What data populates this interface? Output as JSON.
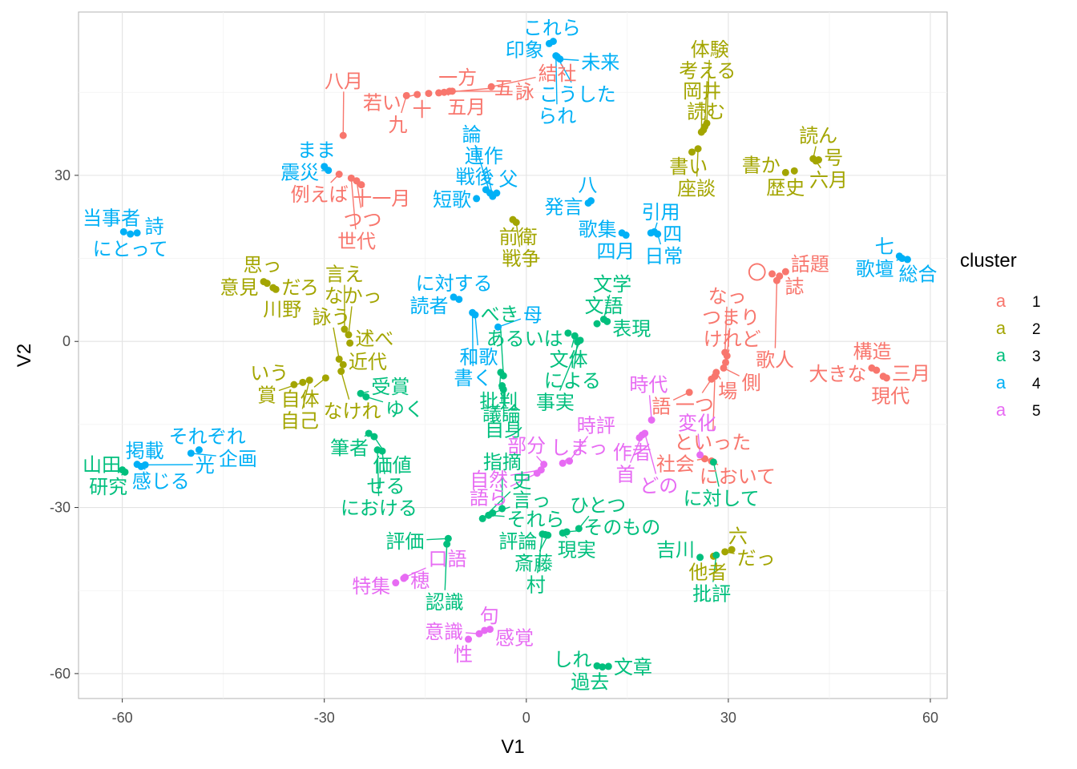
{
  "chart_data": {
    "type": "scatter",
    "xlabel": "V1",
    "ylabel": "V2",
    "xlim": [
      -66.5,
      62.5
    ],
    "ylim": [
      -64.5,
      59.5
    ],
    "x_ticks": [
      -60,
      -30,
      0,
      30,
      60
    ],
    "y_ticks": [
      -60,
      -30,
      0,
      30
    ],
    "grid": true,
    "legend": {
      "title": "cluster",
      "position": "right",
      "key_glyph": "a",
      "entries": [
        {
          "label": "1",
          "color": "#F8766D"
        },
        {
          "label": "2",
          "color": "#A3A500"
        },
        {
          "label": "3",
          "color": "#00BF7D"
        },
        {
          "label": "4",
          "color": "#00B0F6"
        },
        {
          "label": "5",
          "color": "#E76BF3"
        }
      ]
    },
    "points": [
      {
        "label": "九",
        "x": -17.8,
        "y": 44.4,
        "cluster": 1
      },
      {
        "label": "一方",
        "x": -11.4,
        "y": 45.2,
        "cluster": 1
      },
      {
        "label": "若い",
        "x": -16.2,
        "y": 44.6,
        "cluster": 1
      },
      {
        "label": "十",
        "x": -14.5,
        "y": 44.8,
        "cluster": 1
      },
      {
        "label": "五",
        "x": -13.0,
        "y": 44.9,
        "cluster": 1
      },
      {
        "label": "五月",
        "x": -12.2,
        "y": 45.0,
        "cluster": 1
      },
      {
        "label": "詠",
        "x": -11.0,
        "y": 45.2,
        "cluster": 1
      },
      {
        "label": "結社",
        "x": -5.2,
        "y": 46.0,
        "cluster": 1
      },
      {
        "label": "八月",
        "x": -27.2,
        "y": 37.2,
        "cluster": 1
      },
      {
        "label": "例えば",
        "x": -27.8,
        "y": 30.2,
        "cluster": 1
      },
      {
        "label": "世代",
        "x": -26.0,
        "y": 29.5,
        "cluster": 1
      },
      {
        "label": "つつ",
        "x": -25.2,
        "y": 29.0,
        "cluster": 1
      },
      {
        "label": "十一月",
        "x": -24.5,
        "y": 28.3,
        "cluster": 1
      },
      {
        "label": "〇",
        "x": 36.5,
        "y": 12.2,
        "cluster": 1
      },
      {
        "label": "話題",
        "x": 38.5,
        "y": 12.6,
        "cluster": 1
      },
      {
        "label": "誌",
        "x": 37.6,
        "y": 11.8,
        "cluster": 1
      },
      {
        "label": "歌人",
        "x": 37.2,
        "y": 11.0,
        "cluster": 1
      },
      {
        "label": "なっ",
        "x": 29.5,
        "y": -2.0,
        "cluster": 1
      },
      {
        "label": "つまり",
        "x": 29.8,
        "y": -2.6,
        "cluster": 1
      },
      {
        "label": "けれど",
        "x": 29.6,
        "y": -3.8,
        "cluster": 1
      },
      {
        "label": "側",
        "x": 29.3,
        "y": -4.8,
        "cluster": 1
      },
      {
        "label": "場",
        "x": 28.2,
        "y": -5.6,
        "cluster": 1
      },
      {
        "label": "一つ",
        "x": 27.5,
        "y": -6.8,
        "cluster": 1
      },
      {
        "label": "といった",
        "x": 28.0,
        "y": -6.3,
        "cluster": 1
      },
      {
        "label": "語",
        "x": 24.2,
        "y": -9.2,
        "cluster": 1
      },
      {
        "label": "大きな",
        "x": 51.3,
        "y": -4.8,
        "cluster": 1
      },
      {
        "label": "構造",
        "x": 52.0,
        "y": -5.2,
        "cluster": 1
      },
      {
        "label": "三月",
        "x": 53.5,
        "y": -6.6,
        "cluster": 1
      },
      {
        "label": "現代",
        "x": 53.0,
        "y": -6.3,
        "cluster": 1
      },
      {
        "label": "社会",
        "x": 26.5,
        "y": -21.2,
        "cluster": 1
      },
      {
        "label": "において",
        "x": 27.5,
        "y": -21.6,
        "cluster": 1
      },
      {
        "label": "体験",
        "x": 26.8,
        "y": 39.4,
        "cluster": 2
      },
      {
        "label": "考える",
        "x": 26.5,
        "y": 38.8,
        "cluster": 2
      },
      {
        "label": "読む",
        "x": 26.3,
        "y": 38.2,
        "cluster": 2
      },
      {
        "label": "岡井",
        "x": 26.0,
        "y": 37.8,
        "cluster": 2
      },
      {
        "label": "書い",
        "x": 24.6,
        "y": 34.2,
        "cluster": 2
      },
      {
        "label": "座談",
        "x": 25.5,
        "y": 34.8,
        "cluster": 2
      },
      {
        "label": "読ん",
        "x": 42.6,
        "y": 33.0,
        "cluster": 2
      },
      {
        "label": "六月",
        "x": 43.0,
        "y": 32.6,
        "cluster": 2
      },
      {
        "label": "号",
        "x": 43.4,
        "y": 32.8,
        "cluster": 2
      },
      {
        "label": "書か",
        "x": 38.5,
        "y": 30.5,
        "cluster": 2
      },
      {
        "label": "歴史",
        "x": 39.8,
        "y": 30.8,
        "cluster": 2
      },
      {
        "label": "前衛",
        "x": -2.0,
        "y": 22.0,
        "cluster": 2
      },
      {
        "label": "戦争",
        "x": -1.5,
        "y": 21.5,
        "cluster": 2
      },
      {
        "label": "意見",
        "x": -39.0,
        "y": 10.8,
        "cluster": 2
      },
      {
        "label": "思っ",
        "x": -38.5,
        "y": 10.5,
        "cluster": 2
      },
      {
        "label": "だろ",
        "x": -37.6,
        "y": 9.7,
        "cluster": 2
      },
      {
        "label": "川野",
        "x": -37.2,
        "y": 9.4,
        "cluster": 2
      },
      {
        "label": "言え",
        "x": -27.0,
        "y": 2.2,
        "cluster": 2
      },
      {
        "label": "なかっ",
        "x": -26.4,
        "y": 1.2,
        "cluster": 2
      },
      {
        "label": "述べ",
        "x": -26.2,
        "y": -0.3,
        "cluster": 2
      },
      {
        "label": "詠う",
        "x": -27.8,
        "y": -3.2,
        "cluster": 2
      },
      {
        "label": "近代",
        "x": -27.2,
        "y": -4.2,
        "cluster": 2
      },
      {
        "label": "自体",
        "x": -29.8,
        "y": -6.6,
        "cluster": 2
      },
      {
        "label": "なけれ",
        "x": -27.5,
        "y": -5.4,
        "cluster": 2
      },
      {
        "label": "いう",
        "x": -34.5,
        "y": -7.8,
        "cluster": 2
      },
      {
        "label": "賞",
        "x": -33.2,
        "y": -7.4,
        "cluster": 2
      },
      {
        "label": "自己",
        "x": -32.2,
        "y": -7.0,
        "cluster": 2
      },
      {
        "label": "他者",
        "x": 27.8,
        "y": -38.8,
        "cluster": 2
      },
      {
        "label": "だっ",
        "x": 29.5,
        "y": -38.0,
        "cluster": 2
      },
      {
        "label": "六",
        "x": 30.5,
        "y": -37.6,
        "cluster": 2
      },
      {
        "label": "文体",
        "x": 7.2,
        "y": 1.0,
        "cluster": 3
      },
      {
        "label": "あるいは",
        "x": 6.2,
        "y": 1.5,
        "cluster": 3
      },
      {
        "label": "文語",
        "x": 10.5,
        "y": 3.2,
        "cluster": 3
      },
      {
        "label": "文学",
        "x": 11.5,
        "y": 4.0,
        "cluster": 3
      },
      {
        "label": "表現",
        "x": 12.0,
        "y": 3.6,
        "cluster": 3
      },
      {
        "label": "事実",
        "x": 8.0,
        "y": 0.2,
        "cluster": 3
      },
      {
        "label": "による",
        "x": 7.6,
        "y": -0.1,
        "cluster": 3
      },
      {
        "label": "批判",
        "x": -3.8,
        "y": -5.6,
        "cluster": 3
      },
      {
        "label": "べき",
        "x": -3.4,
        "y": -6.2,
        "cluster": 3
      },
      {
        "label": "議論",
        "x": -3.6,
        "y": -8.0,
        "cluster": 3
      },
      {
        "label": "自身",
        "x": -3.4,
        "y": -8.7,
        "cluster": 3
      },
      {
        "label": "受賞",
        "x": -24.6,
        "y": -9.4,
        "cluster": 3
      },
      {
        "label": "ゆく",
        "x": -23.8,
        "y": -10.0,
        "cluster": 3
      },
      {
        "label": "筆者",
        "x": -23.4,
        "y": -16.6,
        "cluster": 3
      },
      {
        "label": "価値",
        "x": -22.6,
        "y": -17.2,
        "cluster": 3
      },
      {
        "label": "における",
        "x": -22.1,
        "y": -19.6,
        "cluster": 3
      },
      {
        "label": "せる",
        "x": -21.4,
        "y": -19.8,
        "cluster": 3
      },
      {
        "label": "山田",
        "x": -60.0,
        "y": -23.2,
        "cluster": 3
      },
      {
        "label": "研究",
        "x": -59.6,
        "y": -23.6,
        "cluster": 3
      },
      {
        "label": "に対して",
        "x": 27.8,
        "y": -21.8,
        "cluster": 3
      },
      {
        "label": "指摘",
        "x": -3.6,
        "y": -30.2,
        "cluster": 3
      },
      {
        "label": "史",
        "x": -6.5,
        "y": -32.0,
        "cluster": 3
      },
      {
        "label": "それら",
        "x": -5.6,
        "y": -31.4,
        "cluster": 3
      },
      {
        "label": "言っ",
        "x": -5.0,
        "y": -31.0,
        "cluster": 3
      },
      {
        "label": "評価",
        "x": -11.6,
        "y": -35.6,
        "cluster": 3
      },
      {
        "label": "認識",
        "x": -11.8,
        "y": -36.6,
        "cluster": 3
      },
      {
        "label": "村",
        "x": 2.4,
        "y": -34.8,
        "cluster": 3
      },
      {
        "label": "斎藤",
        "x": 3.2,
        "y": -35.0,
        "cluster": 3
      },
      {
        "label": "評論",
        "x": 2.8,
        "y": -34.9,
        "cluster": 3
      },
      {
        "label": "ひとつ",
        "x": 7.8,
        "y": -33.8,
        "cluster": 3
      },
      {
        "label": "現実",
        "x": 5.4,
        "y": -34.6,
        "cluster": 3
      },
      {
        "label": "そのもの",
        "x": 6.0,
        "y": -34.4,
        "cluster": 3
      },
      {
        "label": "批評",
        "x": 28.2,
        "y": -38.6,
        "cluster": 3
      },
      {
        "label": "吉川",
        "x": 25.8,
        "y": -39.0,
        "cluster": 3
      },
      {
        "label": "しれ",
        "x": 10.5,
        "y": -58.6,
        "cluster": 3
      },
      {
        "label": "過去",
        "x": 11.3,
        "y": -58.8,
        "cluster": 3
      },
      {
        "label": "文章",
        "x": 12.2,
        "y": -58.7,
        "cluster": 3
      },
      {
        "label": "印象",
        "x": 3.4,
        "y": 53.8,
        "cluster": 4
      },
      {
        "label": "これら",
        "x": 4.0,
        "y": 54.2,
        "cluster": 4
      },
      {
        "label": "られ",
        "x": 4.4,
        "y": 51.6,
        "cluster": 4
      },
      {
        "label": "未来",
        "x": 5.0,
        "y": 51.0,
        "cluster": 4
      },
      {
        "label": "こうした",
        "x": 4.6,
        "y": 51.4,
        "cluster": 4
      },
      {
        "label": "まま",
        "x": -30.0,
        "y": 31.6,
        "cluster": 4
      },
      {
        "label": "震災",
        "x": -29.4,
        "y": 30.9,
        "cluster": 4
      },
      {
        "label": "詩",
        "x": -57.8,
        "y": 19.6,
        "cluster": 4
      },
      {
        "label": "当事者",
        "x": -59.8,
        "y": 19.8,
        "cluster": 4
      },
      {
        "label": "にとって",
        "x": -58.8,
        "y": 19.4,
        "cluster": 4
      },
      {
        "label": "戦後",
        "x": -6.0,
        "y": 27.4,
        "cluster": 4
      },
      {
        "label": "論",
        "x": -5.4,
        "y": 26.8,
        "cluster": 4
      },
      {
        "label": "連作",
        "x": -5.0,
        "y": 26.2,
        "cluster": 4
      },
      {
        "label": "父",
        "x": -4.4,
        "y": 26.8,
        "cluster": 4
      },
      {
        "label": "短歌",
        "x": -7.4,
        "y": 25.8,
        "cluster": 4
      },
      {
        "label": "八",
        "x": 9.6,
        "y": 25.4,
        "cluster": 4
      },
      {
        "label": "発言",
        "x": 9.2,
        "y": 25.0,
        "cluster": 4
      },
      {
        "label": "四月",
        "x": 14.2,
        "y": 19.6,
        "cluster": 4
      },
      {
        "label": "歌集",
        "x": 14.8,
        "y": 19.2,
        "cluster": 4
      },
      {
        "label": "四",
        "x": 18.5,
        "y": 19.6,
        "cluster": 4
      },
      {
        "label": "引用",
        "x": 19.0,
        "y": 19.8,
        "cluster": 4
      },
      {
        "label": "日常",
        "x": 19.5,
        "y": 19.4,
        "cluster": 4
      },
      {
        "label": "七",
        "x": 55.4,
        "y": 15.4,
        "cluster": 4
      },
      {
        "label": "歌壇",
        "x": 55.8,
        "y": 15.0,
        "cluster": 4
      },
      {
        "label": "総合",
        "x": 56.6,
        "y": 14.8,
        "cluster": 4
      },
      {
        "label": "読者",
        "x": -10.8,
        "y": 8.0,
        "cluster": 4
      },
      {
        "label": "に対する",
        "x": -10.0,
        "y": 7.6,
        "cluster": 4
      },
      {
        "label": "書く",
        "x": -8.0,
        "y": 5.2,
        "cluster": 4
      },
      {
        "label": "和歌",
        "x": -7.6,
        "y": 4.8,
        "cluster": 4
      },
      {
        "label": "母",
        "x": -4.2,
        "y": 2.6,
        "cluster": 4
      },
      {
        "label": "掲載",
        "x": -57.8,
        "y": -22.2,
        "cluster": 4
      },
      {
        "label": "感じる",
        "x": -57.2,
        "y": -22.6,
        "cluster": 4
      },
      {
        "label": "光",
        "x": -56.6,
        "y": -22.3,
        "cluster": 4
      },
      {
        "label": "企画",
        "x": -49.8,
        "y": -20.2,
        "cluster": 4
      },
      {
        "label": "それぞれ",
        "x": -48.6,
        "y": -19.6,
        "cluster": 4
      },
      {
        "label": "部分",
        "x": 2.6,
        "y": -22.2,
        "cluster": 5
      },
      {
        "label": "時評",
        "x": 6.4,
        "y": -21.6,
        "cluster": 5
      },
      {
        "label": "語ら",
        "x": 1.6,
        "y": -23.8,
        "cluster": 5
      },
      {
        "label": "自然",
        "x": 2.2,
        "y": -23.2,
        "cluster": 5
      },
      {
        "label": "しまっ",
        "x": 5.4,
        "y": -22.0,
        "cluster": 5
      },
      {
        "label": "時代",
        "x": 18.6,
        "y": -14.2,
        "cluster": 5
      },
      {
        "label": "首",
        "x": 17.2,
        "y": -16.9,
        "cluster": 5
      },
      {
        "label": "作者",
        "x": 16.8,
        "y": -17.4,
        "cluster": 5
      },
      {
        "label": "どの",
        "x": 17.6,
        "y": -16.6,
        "cluster": 5
      },
      {
        "label": "変化",
        "x": 25.8,
        "y": -20.5,
        "cluster": 5
      },
      {
        "label": "口語",
        "x": -18.0,
        "y": -42.6,
        "cluster": 5
      },
      {
        "label": "特集",
        "x": -19.4,
        "y": -43.6,
        "cluster": 5
      },
      {
        "label": "穂",
        "x": -18.2,
        "y": -42.8,
        "cluster": 5
      },
      {
        "label": "句",
        "x": -6.2,
        "y": -52.2,
        "cluster": 5
      },
      {
        "label": "感覚",
        "x": -5.4,
        "y": -52.0,
        "cluster": 5
      },
      {
        "label": "性",
        "x": -8.6,
        "y": -53.8,
        "cluster": 5
      },
      {
        "label": "意識",
        "x": -7.0,
        "y": -52.8,
        "cluster": 5
      }
    ]
  }
}
